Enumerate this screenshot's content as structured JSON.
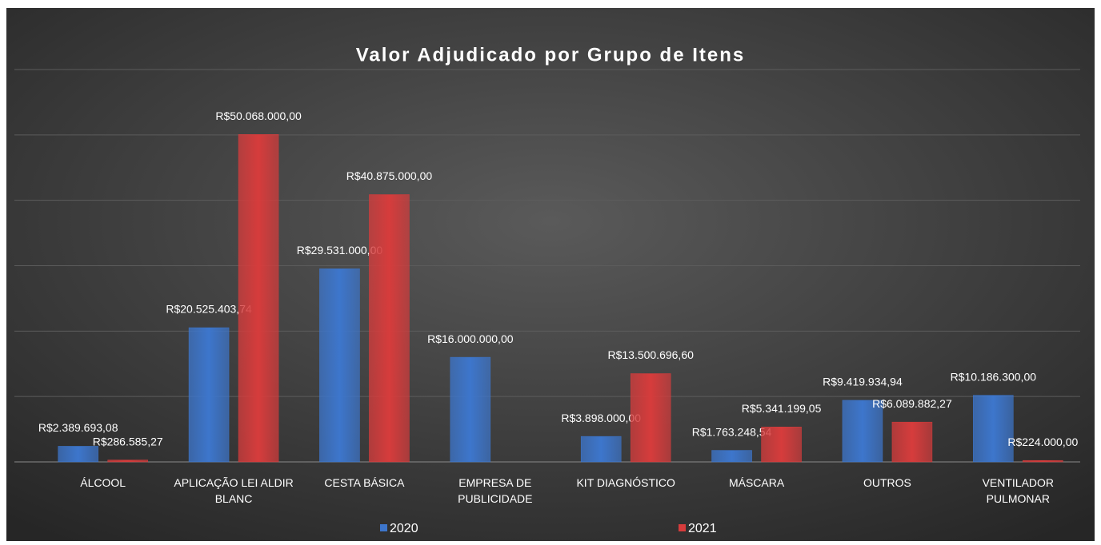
{
  "chart_data": {
    "type": "bar",
    "title": "Valor Adjudicado por Grupo de Itens",
    "categories": [
      "ÁLCOOL",
      "APLICAÇÃO LEI ALDIR BLANC",
      "CESTA BÁSICA",
      "EMPRESA DE PUBLICIDADE",
      "KIT DIAGNÓSTICO",
      "MÁSCARA",
      "OUTROS",
      "VENTILADOR PULMONAR"
    ],
    "series": [
      {
        "name": "2020",
        "color": "#3d76cc",
        "values": [
          2389693.08,
          20525403.74,
          29531000,
          16000000,
          3898000,
          1763248.54,
          9419934.94,
          10186300
        ],
        "value_labels": [
          "R$2.389.693,08",
          "R$20.525.403,74",
          "R$29.531.000,00",
          "R$16.000.000,00",
          "R$3.898.000,00",
          "R$1.763.248,54",
          "R$9.419.934,94",
          "R$10.186.300,00"
        ]
      },
      {
        "name": "2021",
        "color": "#d63c3c",
        "values": [
          286585.27,
          50068000,
          40875000,
          null,
          13500696.6,
          5341199.05,
          6089882.27,
          224000
        ],
        "value_labels": [
          "R$286.585,27",
          "R$50.068.000,00",
          "R$40.875.000,00",
          null,
          "R$13.500.696,60",
          "R$5.341.199,05",
          "R$6.089.882,27",
          "R$224.000,00"
        ]
      }
    ],
    "ylim": [
      0,
      60000000
    ],
    "yticks": [
      0,
      10000000,
      20000000,
      30000000,
      40000000,
      50000000,
      60000000
    ],
    "grid": true,
    "legend": "bottom"
  }
}
